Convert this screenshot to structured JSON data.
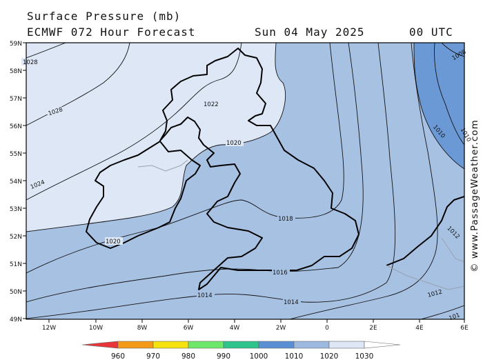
{
  "header": {
    "title": "Surface Pressure (mb)",
    "model": "ECMWF 072 Hour Forecast",
    "valid_date": "Sun 04 May 2025",
    "valid_time": "00 UTC"
  },
  "watermark": "© www.PassageWeather.com",
  "axes": {
    "lat_labels": [
      "59N",
      "58N",
      "57N",
      "56N",
      "55N",
      "54N",
      "53N",
      "52N",
      "51N",
      "50N",
      "49N"
    ],
    "lon_labels": [
      "12W",
      "10W",
      "8W",
      "6W",
      "4W",
      "2W",
      "0",
      "2E",
      "4E",
      "6E"
    ]
  },
  "isobar_labels": {
    "p1028a": "1028",
    "p1028b": "1028",
    "p1024": "1024",
    "p1022": "1022",
    "p1020a": "1020",
    "p1020b": "1020",
    "p1018": "1018",
    "p1016": "1016",
    "p1014a": "1014",
    "p1014b": "1014",
    "p1012a": "1012",
    "p1012b": "1012",
    "p1010a": "1010",
    "p1010b": "1010",
    "p1008": "1008",
    "p1010c": "101"
  },
  "legend": {
    "ticks": [
      "960",
      "970",
      "980",
      "990",
      "1000",
      "1010",
      "1020",
      "1030"
    ],
    "colors": [
      "#e8353a",
      "#f39a18",
      "#f5e20f",
      "#6ee86a",
      "#2fc48c",
      "#5b8fd4",
      "#9db9e0",
      "#dde7f5",
      "#ffffff"
    ]
  }
}
